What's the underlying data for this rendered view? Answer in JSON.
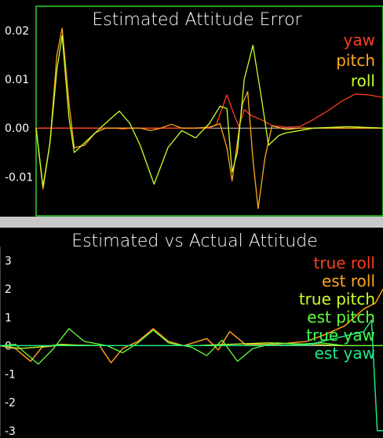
{
  "chart_data": [
    {
      "type": "line",
      "title": "Estimated Attitude Error",
      "ylim": [
        -0.018,
        0.025
      ],
      "yticks": [
        0.02,
        0.01,
        0.0,
        -0.01
      ],
      "ytick_labels": [
        "0.02",
        "0.01",
        "0.00",
        "-0.01"
      ],
      "legend_position": "top-right",
      "colors": {
        "yaw": "#ff3c1e",
        "pitch": "#ffa81e",
        "roll": "#c8ff28"
      },
      "series": [
        {
          "name": "yaw",
          "color": "#ff3c1e",
          "points": [
            [
              0,
              0
            ],
            [
              0.02,
              0
            ],
            [
              0.23,
              0
            ],
            [
              0.25,
              -0.0002
            ],
            [
              0.27,
              0
            ],
            [
              0.3,
              0
            ],
            [
              0.5,
              0
            ],
            [
              0.52,
              0.0008
            ],
            [
              0.55,
              0.0068
            ],
            [
              0.575,
              0.002
            ],
            [
              0.585,
              0.0003
            ],
            [
              0.6,
              0.0038
            ],
            [
              0.62,
              0.0026
            ],
            [
              0.65,
              0.0017
            ],
            [
              0.68,
              0.0005
            ],
            [
              0.72,
              0.0002
            ],
            [
              0.76,
              0.0003
            ],
            [
              0.8,
              0.0018
            ],
            [
              0.84,
              0.0035
            ],
            [
              0.88,
              0.0055
            ],
            [
              0.92,
              0.007
            ],
            [
              0.96,
              0.0068
            ],
            [
              1,
              0.0063
            ]
          ]
        },
        {
          "name": "pitch",
          "color": "#ffa81e",
          "points": [
            [
              0,
              0
            ],
            [
              0.02,
              -0.0125
            ],
            [
              0.04,
              -0.003
            ],
            [
              0.06,
              0.015
            ],
            [
              0.075,
              0.0205
            ],
            [
              0.095,
              0.005
            ],
            [
              0.11,
              -0.004
            ],
            [
              0.14,
              -0.0035
            ],
            [
              0.17,
              -0.001
            ],
            [
              0.2,
              0
            ],
            [
              0.25,
              0
            ],
            [
              0.3,
              0
            ],
            [
              0.33,
              -0.0005
            ],
            [
              0.36,
              0
            ],
            [
              0.39,
              0.0008
            ],
            [
              0.42,
              0
            ],
            [
              0.46,
              0
            ],
            [
              0.5,
              0.0002
            ],
            [
              0.53,
              0.0009
            ],
            [
              0.55,
              -0.004
            ],
            [
              0.565,
              -0.0108
            ],
            [
              0.58,
              -0.003
            ],
            [
              0.595,
              0.005
            ],
            [
              0.61,
              0.0075
            ],
            [
              0.625,
              -0.0065
            ],
            [
              0.64,
              -0.0165
            ],
            [
              0.66,
              -0.006
            ],
            [
              0.68,
              0.0005
            ],
            [
              0.72,
              -0.0003
            ],
            [
              0.76,
              0
            ],
            [
              0.8,
              0
            ],
            [
              1,
              0
            ]
          ]
        },
        {
          "name": "roll",
          "color": "#c8ff28",
          "points": [
            [
              0,
              0
            ],
            [
              0.02,
              -0.012
            ],
            [
              0.04,
              -0.003
            ],
            [
              0.06,
              0.012
            ],
            [
              0.075,
              0.019
            ],
            [
              0.095,
              0.002
            ],
            [
              0.11,
              -0.005
            ],
            [
              0.14,
              -0.003
            ],
            [
              0.2,
              0.001
            ],
            [
              0.24,
              0.0035
            ],
            [
              0.27,
              0.001
            ],
            [
              0.3,
              -0.0035
            ],
            [
              0.34,
              -0.0115
            ],
            [
              0.38,
              -0.004
            ],
            [
              0.42,
              -0.0005
            ],
            [
              0.46,
              -0.002
            ],
            [
              0.5,
              0.001
            ],
            [
              0.53,
              0.0045
            ],
            [
              0.55,
              0.004
            ],
            [
              0.565,
              -0.009
            ],
            [
              0.58,
              -0.005
            ],
            [
              0.6,
              0.01
            ],
            [
              0.625,
              0.017
            ],
            [
              0.65,
              0.006
            ],
            [
              0.67,
              -0.0035
            ],
            [
              0.7,
              -0.0015
            ],
            [
              0.72,
              -0.001
            ],
            [
              0.76,
              -0.0005
            ],
            [
              0.8,
              0
            ],
            [
              0.9,
              0.0003
            ],
            [
              1,
              0
            ]
          ]
        }
      ]
    },
    {
      "type": "line",
      "title": "Estimated vs Actual Attitude",
      "ylim": [
        -3.2,
        3.5
      ],
      "yticks": [
        3,
        2,
        1,
        0,
        -1,
        -2,
        -3
      ],
      "ytick_labels": [
        "3",
        "2",
        "1",
        "0",
        "-1",
        "-2",
        "-3"
      ],
      "legend_position": "top-right",
      "colors": {
        "true_roll": "#ff3c1e",
        "est_roll": "#ffa81e",
        "true_pitch": "#c8ff28",
        "est_pitch": "#64ff3c",
        "true_yaw": "#3cff50",
        "est_yaw": "#1ee68c"
      },
      "series": [
        {
          "name": "true roll",
          "color": "#ff3c1e",
          "points": [
            [
              0,
              0
            ],
            [
              0.04,
              -0.1
            ],
            [
              0.08,
              -0.55
            ],
            [
              0.11,
              -0.05
            ],
            [
              0.16,
              0.02
            ],
            [
              0.26,
              0
            ],
            [
              0.29,
              -0.6
            ],
            [
              0.32,
              -0.1
            ],
            [
              0.36,
              0.15
            ],
            [
              0.4,
              0.6
            ],
            [
              0.44,
              0.15
            ],
            [
              0.48,
              0
            ],
            [
              0.54,
              0.25
            ],
            [
              0.57,
              -0.15
            ],
            [
              0.6,
              0.5
            ],
            [
              0.64,
              0.05
            ],
            [
              0.72,
              0.05
            ],
            [
              0.8,
              0.15
            ],
            [
              0.85,
              0.4
            ],
            [
              0.9,
              0.7
            ],
            [
              0.95,
              1.3
            ],
            [
              0.98,
              1.5
            ],
            [
              1,
              2
            ]
          ]
        },
        {
          "name": "est roll",
          "color": "#ffa81e",
          "points": [
            [
              0,
              0
            ],
            [
              0.04,
              -0.1
            ],
            [
              0.08,
              -0.55
            ],
            [
              0.11,
              -0.05
            ],
            [
              0.16,
              0.02
            ],
            [
              0.26,
              0
            ],
            [
              0.29,
              -0.6
            ],
            [
              0.32,
              -0.1
            ],
            [
              0.36,
              0.15
            ],
            [
              0.4,
              0.6
            ],
            [
              0.44,
              0.15
            ],
            [
              0.48,
              0
            ],
            [
              0.54,
              0.25
            ],
            [
              0.57,
              -0.15
            ],
            [
              0.6,
              0.5
            ],
            [
              0.64,
              0.05
            ],
            [
              0.72,
              0.05
            ],
            [
              0.8,
              0.15
            ],
            [
              0.85,
              0.4
            ],
            [
              0.9,
              0.7
            ],
            [
              0.95,
              1.3
            ],
            [
              0.98,
              1.5
            ],
            [
              1,
              2
            ]
          ]
        },
        {
          "name": "true pitch",
          "color": "#c8ff28",
          "points": [
            [
              0,
              0
            ],
            [
              0.05,
              -0.1
            ],
            [
              0.1,
              -0.05
            ],
            [
              0.16,
              0.05
            ],
            [
              0.2,
              0.02
            ],
            [
              0.3,
              0
            ],
            [
              0.4,
              0
            ],
            [
              0.5,
              0
            ],
            [
              0.6,
              0.05
            ],
            [
              0.7,
              0.1
            ],
            [
              0.8,
              0.05
            ],
            [
              0.9,
              0
            ],
            [
              1,
              0
            ]
          ]
        },
        {
          "name": "est pitch",
          "color": "#64ff3c",
          "points": [
            [
              0,
              0
            ],
            [
              0.04,
              0.05
            ],
            [
              0.1,
              -0.65
            ],
            [
              0.14,
              -0.1
            ],
            [
              0.18,
              0.6
            ],
            [
              0.22,
              0.15
            ],
            [
              0.28,
              0
            ],
            [
              0.32,
              -0.25
            ],
            [
              0.36,
              0.1
            ],
            [
              0.4,
              0.55
            ],
            [
              0.44,
              0.1
            ],
            [
              0.5,
              -0.05
            ],
            [
              0.54,
              -0.35
            ],
            [
              0.58,
              0.2
            ],
            [
              0.62,
              -0.55
            ],
            [
              0.66,
              -0.1
            ],
            [
              0.72,
              0.1
            ],
            [
              0.78,
              0.05
            ],
            [
              0.84,
              0.1
            ],
            [
              0.9,
              0
            ],
            [
              1,
              0
            ]
          ]
        },
        {
          "name": "true yaw",
          "color": "#3cff50",
          "points": [
            [
              0,
              0
            ],
            [
              0.2,
              0
            ],
            [
              0.4,
              0
            ],
            [
              0.6,
              0
            ],
            [
              0.8,
              0.02
            ],
            [
              0.95,
              0.5
            ],
            [
              0.97,
              0.9
            ],
            [
              0.985,
              -3
            ],
            [
              1,
              -3
            ]
          ]
        },
        {
          "name": "est yaw",
          "color": "#1ee68c",
          "points": [
            [
              0,
              0
            ],
            [
              0.2,
              0
            ],
            [
              0.4,
              0
            ],
            [
              0.6,
              0
            ],
            [
              0.8,
              0.02
            ],
            [
              0.95,
              0.5
            ],
            [
              0.97,
              0.9
            ],
            [
              0.985,
              -3
            ],
            [
              1,
              -3
            ]
          ]
        }
      ]
    }
  ]
}
